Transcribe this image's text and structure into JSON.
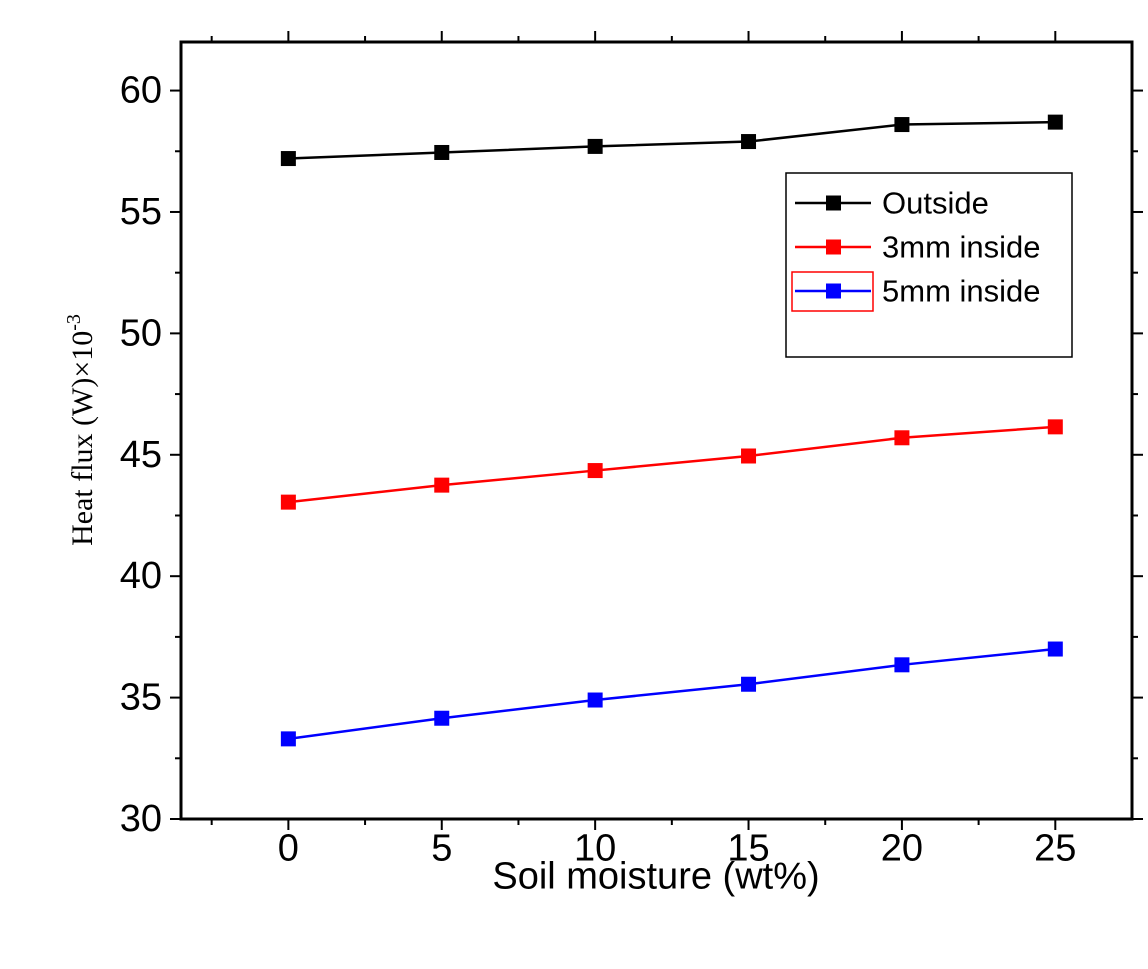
{
  "chart_data": {
    "type": "line",
    "xlabel": "Soil moisture (wt%)",
    "ylabel_main": "Heat flux (W)×10",
    "ylabel_sup": "-3",
    "x": [
      0,
      5,
      10,
      15,
      20,
      25
    ],
    "xlim": [
      -3.5,
      27.5
    ],
    "ylim": [
      30,
      62
    ],
    "xticks": [
      0,
      5,
      10,
      15,
      20,
      25
    ],
    "yticks": [
      30,
      35,
      40,
      45,
      50,
      55,
      60
    ],
    "grid": false,
    "legend_position": "upper-right",
    "series": [
      {
        "name": "Outside",
        "color": "#000000",
        "marker": "square",
        "values": [
          57.2,
          57.45,
          57.7,
          57.9,
          58.6,
          58.7
        ]
      },
      {
        "name": "3mm inside",
        "color": "#ff0000",
        "marker": "square",
        "values": [
          43.05,
          43.75,
          44.35,
          44.95,
          45.7,
          46.15
        ]
      },
      {
        "name": "5mm inside",
        "color": "#0000ff",
        "marker": "square",
        "values": [
          33.3,
          34.15,
          34.9,
          35.55,
          36.35,
          37.0
        ]
      }
    ]
  }
}
